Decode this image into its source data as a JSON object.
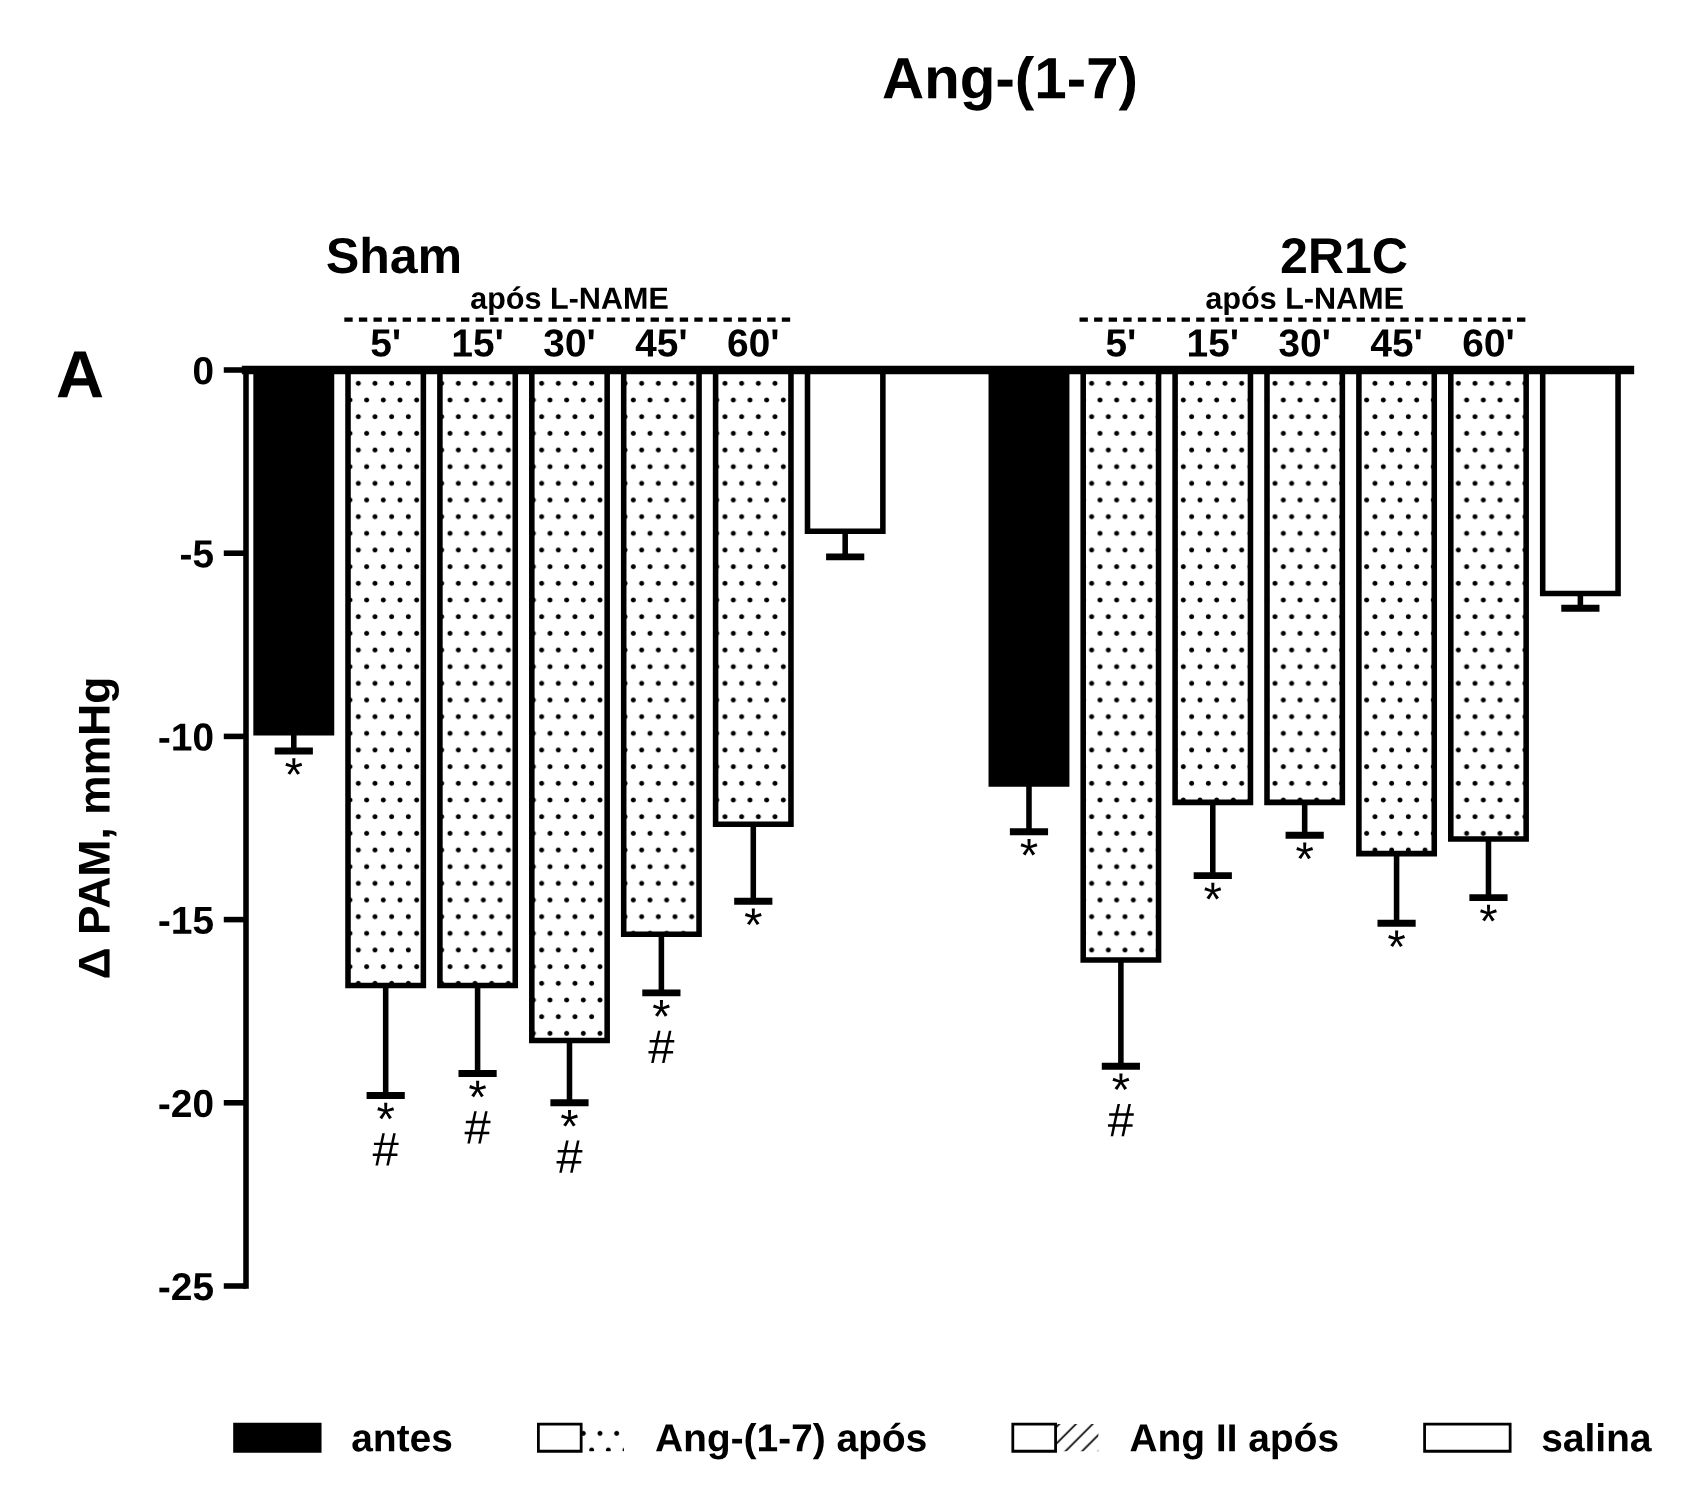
{
  "chart_data": {
    "type": "bar",
    "title": "Ang-(1-7)",
    "ylabel": "Δ PAM, mmHg",
    "categories": [
      null,
      "5'",
      "15'",
      "30'",
      "45'",
      "60'",
      null,
      null,
      null,
      "5'",
      "15'",
      "30'",
      "45'",
      "60'",
      null
    ],
    "series": [
      {
        "name": "antes",
        "color": "#000000",
        "values": [
          -9.9,
          null,
          null,
          null,
          null,
          null,
          null,
          null,
          -11.3,
          null,
          null,
          null,
          null,
          null,
          null
        ],
        "errors": [
          [
            -10.4,
            -9.9
          ],
          null,
          null,
          null,
          null,
          null,
          null,
          null,
          [
            -12.6,
            -11.3
          ],
          null,
          null,
          null,
          null,
          null,
          null
        ],
        "value_labels": [
          "*",
          null,
          null,
          null,
          null,
          null,
          null,
          null,
          "*",
          null,
          null,
          null,
          null,
          null,
          null
        ]
      },
      {
        "name": "Ang-(1-7) após",
        "color": "#ffffff",
        "values": [
          null,
          -16.8,
          -16.8,
          -18.3,
          -15.4,
          -12.4,
          null,
          null,
          null,
          -16.1,
          -11.8,
          -11.8,
          -13.2,
          -12.8,
          null
        ],
        "errors": [
          null,
          [
            -19.8,
            -16.8
          ],
          [
            -19.2,
            -16.8
          ],
          [
            -20.0,
            -18.3
          ],
          [
            -17.0,
            -15.4
          ],
          [
            -14.5,
            -12.4
          ],
          null,
          null,
          null,
          [
            -19.0,
            -16.1
          ],
          [
            -13.8,
            -11.8
          ],
          [
            -12.7,
            -11.8
          ],
          [
            -15.1,
            -13.2
          ],
          [
            -14.4,
            -12.8
          ],
          null
        ],
        "value_labels": [
          null,
          "*\n#",
          "*\n#",
          "*\n#",
          "*\n#",
          "*",
          null,
          null,
          null,
          "*\n#",
          "*",
          "*",
          "*",
          "*",
          null
        ]
      },
      {
        "name": "Ang II após",
        "color": "#ffffff",
        "values": [
          null,
          null,
          null,
          null,
          null,
          null,
          null,
          null,
          null,
          null,
          null,
          null,
          null,
          null,
          null
        ]
      },
      {
        "name": "salina",
        "color": "#ffffff",
        "values": [
          null,
          null,
          null,
          null,
          null,
          null,
          -4.4,
          null,
          null,
          null,
          null,
          null,
          null,
          null,
          -6.1
        ],
        "errors": [
          null,
          null,
          null,
          null,
          null,
          null,
          [
            -5.1,
            -4.4
          ],
          null,
          null,
          null,
          null,
          null,
          null,
          null,
          [
            -6.5,
            -6.1
          ]
        ]
      }
    ],
    "ylim": [
      -25,
      0
    ],
    "yticks": [
      0,
      -5,
      -10,
      -15,
      -20,
      -25
    ],
    "grid": false,
    "legend": "bottom",
    "annotations": [
      "A",
      "Sham",
      "2R1C",
      "após L-NAME",
      "após L-NAME"
    ]
  }
}
